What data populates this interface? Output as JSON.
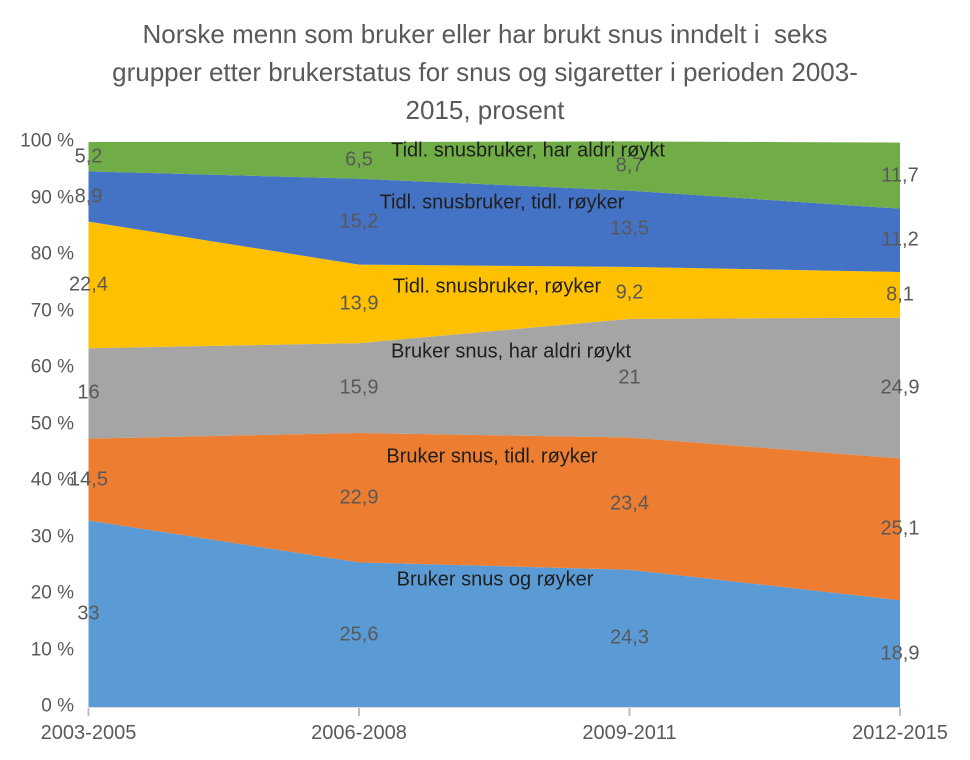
{
  "title": {
    "lines": [
      "Norske menn som bruker eller har brukt snus inndelt i  seks",
      "grupper etter brukerstatus for snus og sigaretter i perioden 2003-",
      "2015, prosent"
    ]
  },
  "chart_data": {
    "type": "area",
    "stacked": true,
    "percent_total": true,
    "categories": [
      "2003-2005",
      "2006-2008",
      "2009-2011",
      "2012-2015"
    ],
    "series": [
      {
        "name": "Bruker snus og røyker",
        "values": [
          33,
          25.6,
          24.3,
          18.9
        ],
        "color": "#5B9BD5"
      },
      {
        "name": "Bruker snus, tidl. røyker",
        "values": [
          14.5,
          22.9,
          23.4,
          25.1
        ],
        "color": "#ED7D31"
      },
      {
        "name": "Bruker snus, har aldri røykt",
        "values": [
          16,
          15.9,
          21,
          24.9
        ],
        "color": "#A5A5A5"
      },
      {
        "name": "Tidl. snusbruker, røyker",
        "values": [
          22.4,
          13.9,
          9.2,
          8.1
        ],
        "color": "#FFC000"
      },
      {
        "name": "Tidl. snusbruker, tidl. røyker",
        "values": [
          8.9,
          15.2,
          13.5,
          11.2
        ],
        "color": "#4472C4"
      },
      {
        "name": "Tidl. snusbruker, har aldri røykt",
        "values": [
          5.2,
          6.5,
          8.7,
          11.7
        ],
        "color": "#70AD47"
      }
    ],
    "y_ticks": [
      "0 %",
      "10 %",
      "20 %",
      "30 %",
      "40 %",
      "50 %",
      "60 %",
      "70 %",
      "80 %",
      "90 %",
      "100 %"
    ],
    "ylim": [
      0,
      100
    ],
    "xlabel": "",
    "ylabel": "",
    "grid": false,
    "legend_position": "none-inline-labels",
    "decimal_separator": ",",
    "value_label_color": "#595959",
    "series_label_color": "#1f1f1f",
    "axis_text_color": "#595959",
    "axis_line_color": "#D9D9D9",
    "tick_mark_color": "#BFBFBF"
  }
}
